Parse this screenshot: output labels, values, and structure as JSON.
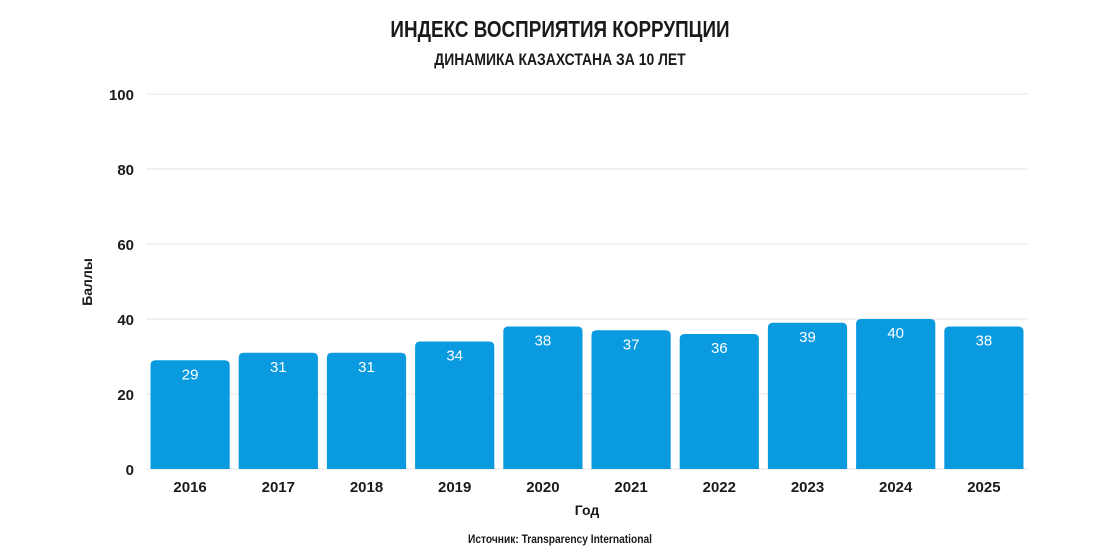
{
  "chart_data": {
    "type": "bar",
    "title": "ИНДЕКС ВОСПРИЯТИЯ КОРРУПЦИИ",
    "subtitle": "ДИНАМИКА КАЗАХСТАНА ЗА 10 ЛЕТ",
    "xlabel": "Год",
    "ylabel": "Баллы",
    "categories": [
      "2016",
      "2017",
      "2018",
      "2019",
      "2020",
      "2021",
      "2022",
      "2023",
      "2024",
      "2025"
    ],
    "values": [
      29,
      31,
      31,
      34,
      38,
      37,
      36,
      39,
      40,
      38
    ],
    "ylim": [
      0,
      100
    ],
    "yticks": [
      0,
      20,
      40,
      60,
      80,
      100
    ],
    "grid": true,
    "bar_color": "#0a9ae0",
    "source": "Источник: Transparency International"
  }
}
